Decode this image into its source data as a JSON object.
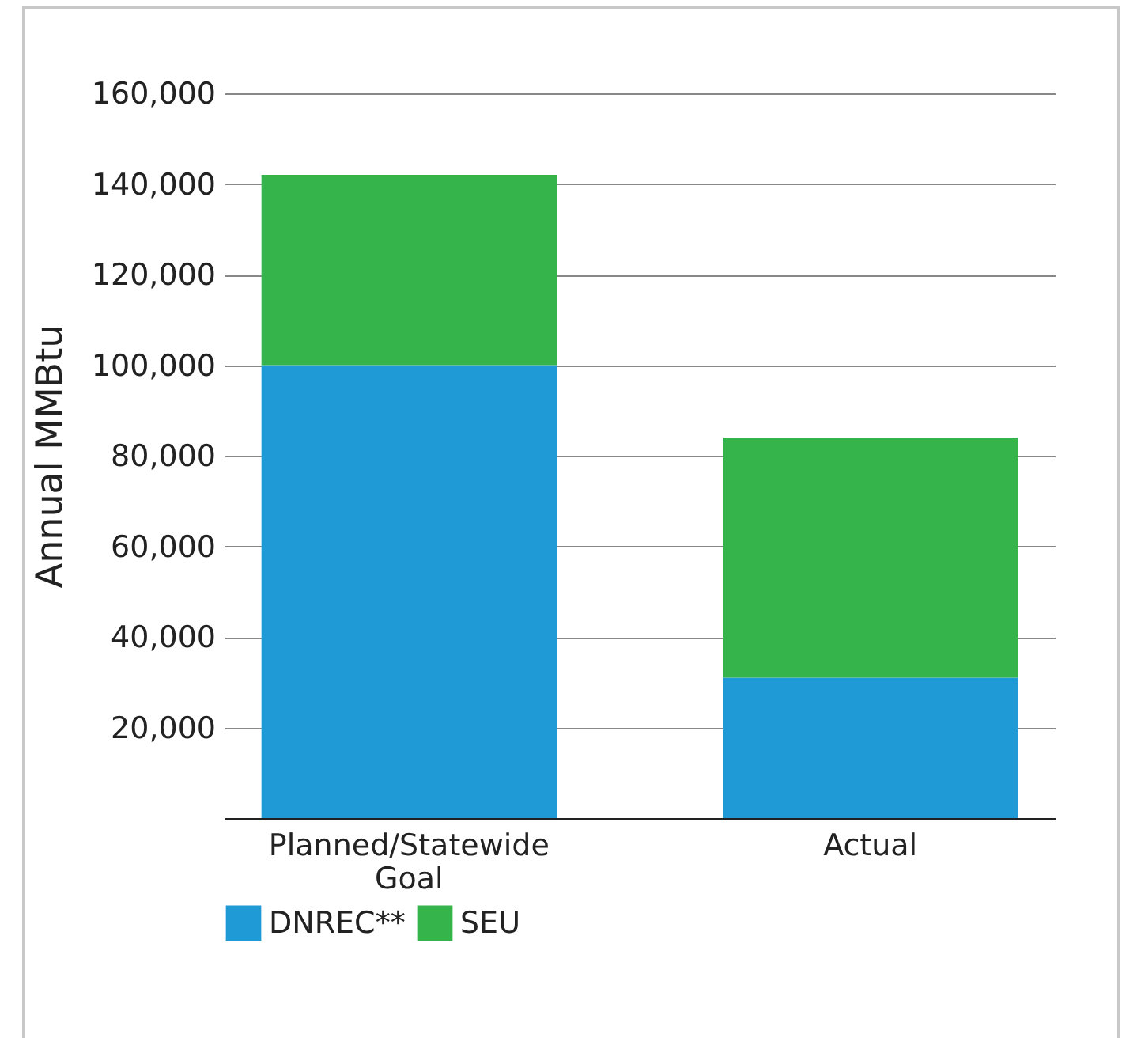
{
  "chart_data": {
    "type": "bar",
    "ylabel": "Annual MMBtu",
    "categories": [
      "Planned/Statewide Goal",
      "Actual"
    ],
    "stacked": true,
    "series": [
      {
        "name": "DNREC**",
        "color": "#1f9ad6",
        "values": [
          100000,
          31000
        ]
      },
      {
        "name": "SEU",
        "color": "#34b44a",
        "values": [
          42000,
          53000
        ]
      }
    ],
    "ylim": [
      0,
      160000
    ],
    "yticks": [
      {
        "value": 20000,
        "label": "20,000"
      },
      {
        "value": 40000,
        "label": "40,000"
      },
      {
        "value": 60000,
        "label": "60,000"
      },
      {
        "value": 80000,
        "label": "80,000"
      },
      {
        "value": 100000,
        "label": "100,000"
      },
      {
        "value": 120000,
        "label": "120,000"
      },
      {
        "value": 140000,
        "label": "140,000"
      },
      {
        "value": 160000,
        "label": "160,000"
      }
    ],
    "grid": "y",
    "legend": "bottom"
  }
}
